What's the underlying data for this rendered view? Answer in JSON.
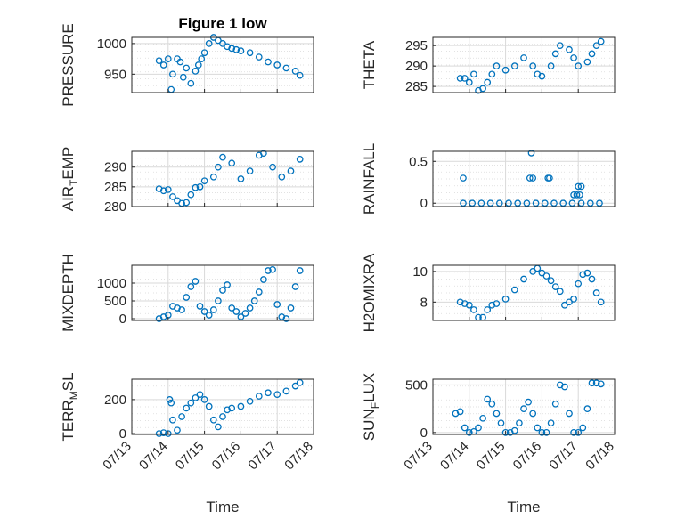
{
  "title": "Figure 1 low",
  "colors": {
    "marker": "#0072BD",
    "axis": "#262626",
    "grid": "#d9d9d9"
  },
  "xlabel": "Time",
  "chart_data": [
    {
      "type": "scatter",
      "ylabel": "PRESSURE",
      "ylabel_sub": "",
      "ylabel_tail": "",
      "xlim": [
        "07/13",
        "07/18"
      ],
      "ylim": [
        920,
        1010
      ],
      "yticks": [
        950,
        1000
      ],
      "grid": true,
      "x": [
        "07/13 18:00",
        "07/13 21:00",
        "07/14 00:00",
        "07/14 02:00",
        "07/14 03:00",
        "07/14 06:00",
        "07/14 08:00",
        "07/14 10:00",
        "07/14 12:00",
        "07/14 15:00",
        "07/14 18:00",
        "07/14 20:00",
        "07/14 22:00",
        "07/15 00:00",
        "07/15 03:00",
        "07/15 06:00",
        "07/15 09:00",
        "07/15 12:00",
        "07/15 15:00",
        "07/15 18:00",
        "07/15 21:00",
        "07/16 00:00",
        "07/16 06:00",
        "07/16 12:00",
        "07/16 18:00",
        "07/17 00:00",
        "07/17 06:00",
        "07/17 12:00",
        "07/17 15:00"
      ],
      "y": [
        972,
        965,
        975,
        925,
        950,
        975,
        970,
        945,
        960,
        935,
        955,
        965,
        975,
        985,
        1000,
        1010,
        1005,
        1000,
        995,
        992,
        990,
        988,
        985,
        978,
        970,
        965,
        960,
        955,
        948
      ]
    },
    {
      "type": "scatter",
      "ylabel": "THETA",
      "ylabel_sub": "",
      "ylabel_tail": "",
      "xlim": [
        "07/13",
        "07/18"
      ],
      "ylim": [
        283.5,
        297
      ],
      "yticks": [
        285,
        290,
        295
      ],
      "grid": true,
      "x": [
        "07/13 18:00",
        "07/13 21:00",
        "07/14 00:00",
        "07/14 03:00",
        "07/14 06:00",
        "07/14 09:00",
        "07/14 12:00",
        "07/14 15:00",
        "07/14 18:00",
        "07/15 00:00",
        "07/15 06:00",
        "07/15 12:00",
        "07/15 18:00",
        "07/15 21:00",
        "07/16 00:00",
        "07/16 06:00",
        "07/16 09:00",
        "07/16 12:00",
        "07/16 18:00",
        "07/16 21:00",
        "07/17 00:00",
        "07/17 06:00",
        "07/17 09:00",
        "07/17 12:00",
        "07/17 15:00"
      ],
      "y": [
        287,
        287,
        286,
        288,
        284,
        284.5,
        286,
        288,
        290,
        289,
        290,
        292,
        290,
        288,
        287.5,
        290,
        293,
        295,
        294,
        292,
        290,
        291,
        293,
        295,
        296
      ]
    },
    {
      "type": "scatter",
      "ylabel": "AIR",
      "ylabel_sub": "T",
      "ylabel_tail": "EMP",
      "xlim": [
        "07/13",
        "07/18"
      ],
      "ylim": [
        280,
        294
      ],
      "yticks": [
        280,
        285,
        290
      ],
      "grid": true,
      "x": [
        "07/13 18:00",
        "07/13 21:00",
        "07/14 00:00",
        "07/14 03:00",
        "07/14 06:00",
        "07/14 09:00",
        "07/14 12:00",
        "07/14 15:00",
        "07/14 18:00",
        "07/14 21:00",
        "07/15 00:00",
        "07/15 06:00",
        "07/15 09:00",
        "07/15 12:00",
        "07/15 18:00",
        "07/16 00:00",
        "07/16 06:00",
        "07/16 12:00",
        "07/16 15:00",
        "07/16 21:00",
        "07/17 03:00",
        "07/17 09:00",
        "07/17 15:00"
      ],
      "y": [
        284.5,
        284,
        284.3,
        282.5,
        281.5,
        280.8,
        281,
        283,
        284.8,
        285,
        286.5,
        287.5,
        290,
        292.5,
        291,
        287,
        289,
        293,
        293.5,
        290,
        287.5,
        289,
        292
      ]
    },
    {
      "type": "scatter",
      "ylabel": "RAINFALL",
      "ylabel_sub": "",
      "ylabel_tail": "",
      "xlim": [
        "07/13",
        "07/18"
      ],
      "ylim": [
        -0.04,
        0.62
      ],
      "yticks": [
        0,
        0.5
      ],
      "grid": true,
      "x": [
        "07/13 20:00",
        "07/14 02:00",
        "07/14 08:00",
        "07/14 14:00",
        "07/14 20:00",
        "07/15 02:00",
        "07/15 08:00",
        "07/15 14:00",
        "07/15 20:00",
        "07/16 02:00",
        "07/16 08:00",
        "07/16 14:00",
        "07/16 20:00",
        "07/17 02:00",
        "07/17 08:00",
        "07/17 14:00",
        "07/13 20:00",
        "07/15 16:00",
        "07/15 17:00",
        "07/15 18:00",
        "07/16 04:00",
        "07/16 05:00",
        "07/16 21:00",
        "07/17 00:00",
        "07/17 02:00",
        "07/16 23:00",
        "07/17 01:00"
      ],
      "y": [
        0,
        0,
        0,
        0,
        0,
        0,
        0,
        0,
        0,
        0,
        0,
        0,
        0,
        0,
        0,
        0,
        0.3,
        0.3,
        0.6,
        0.3,
        0.3,
        0.3,
        0.1,
        0.2,
        0.2,
        0.1,
        0.1
      ]
    },
    {
      "type": "scatter",
      "ylabel": "MIXDEPTH",
      "ylabel_sub": "",
      "ylabel_tail": "",
      "xlim": [
        "07/13",
        "07/18"
      ],
      "ylim": [
        -50,
        1500
      ],
      "yticks": [
        0,
        500,
        1000
      ],
      "grid": true,
      "x": [
        "07/13 18:00",
        "07/13 21:00",
        "07/14 00:00",
        "07/14 03:00",
        "07/14 06:00",
        "07/14 09:00",
        "07/14 12:00",
        "07/14 15:00",
        "07/14 18:00",
        "07/14 21:00",
        "07/15 00:00",
        "07/15 03:00",
        "07/15 06:00",
        "07/15 09:00",
        "07/15 12:00",
        "07/15 15:00",
        "07/15 18:00",
        "07/15 21:00",
        "07/16 00:00",
        "07/16 03:00",
        "07/16 06:00",
        "07/16 09:00",
        "07/16 12:00",
        "07/16 15:00",
        "07/16 18:00",
        "07/16 21:00",
        "07/17 00:00",
        "07/17 03:00",
        "07/17 06:00",
        "07/17 09:00",
        "07/17 12:00",
        "07/17 15:00"
      ],
      "y": [
        0,
        50,
        100,
        350,
        300,
        250,
        600,
        900,
        1050,
        350,
        200,
        100,
        250,
        500,
        800,
        950,
        300,
        200,
        50,
        150,
        300,
        500,
        750,
        1100,
        1350,
        1380,
        400,
        50,
        0,
        300,
        900,
        1350
      ]
    },
    {
      "type": "scatter",
      "ylabel": "H2OMIXRA",
      "ylabel_sub": "",
      "ylabel_tail": "",
      "xlim": [
        "07/13",
        "07/18"
      ],
      "ylim": [
        6.8,
        10.4
      ],
      "yticks": [
        8,
        10
      ],
      "grid": true,
      "x": [
        "07/13 18:00",
        "07/13 21:00",
        "07/14 00:00",
        "07/14 03:00",
        "07/14 06:00",
        "07/14 09:00",
        "07/14 12:00",
        "07/14 15:00",
        "07/14 18:00",
        "07/15 00:00",
        "07/15 06:00",
        "07/15 12:00",
        "07/15 18:00",
        "07/15 21:00",
        "07/16 00:00",
        "07/16 03:00",
        "07/16 06:00",
        "07/16 09:00",
        "07/16 12:00",
        "07/16 15:00",
        "07/16 18:00",
        "07/16 21:00",
        "07/17 00:00",
        "07/17 03:00",
        "07/17 06:00",
        "07/17 09:00",
        "07/17 12:00",
        "07/17 15:00"
      ],
      "y": [
        8,
        7.9,
        7.8,
        7.5,
        7.0,
        7.0,
        7.5,
        7.8,
        7.9,
        8.2,
        8.8,
        9.5,
        10.0,
        10.2,
        9.9,
        9.7,
        9.4,
        9.0,
        8.7,
        7.8,
        8.0,
        8.2,
        9.2,
        9.8,
        9.9,
        9.5,
        8.6,
        8.0
      ]
    },
    {
      "type": "scatter",
      "ylabel": "TERR",
      "ylabel_sub": "M",
      "ylabel_tail": "SL",
      "xlim": [
        "07/13",
        "07/18"
      ],
      "ylim": [
        -5,
        320
      ],
      "yticks": [
        0,
        200
      ],
      "grid": true,
      "x": [
        "07/13 18:00",
        "07/13 21:00",
        "07/14 00:00",
        "07/14 01:00",
        "07/14 02:00",
        "07/14 03:00",
        "07/14 06:00",
        "07/14 09:00",
        "07/14 12:00",
        "07/14 15:00",
        "07/14 18:00",
        "07/14 21:00",
        "07/15 00:00",
        "07/15 03:00",
        "07/15 06:00",
        "07/15 09:00",
        "07/15 12:00",
        "07/15 15:00",
        "07/15 18:00",
        "07/16 00:00",
        "07/16 06:00",
        "07/16 12:00",
        "07/16 18:00",
        "07/17 00:00",
        "07/17 06:00",
        "07/17 12:00",
        "07/17 15:00"
      ],
      "y": [
        0,
        5,
        0,
        200,
        180,
        80,
        20,
        100,
        150,
        180,
        210,
        230,
        200,
        160,
        80,
        40,
        100,
        140,
        150,
        160,
        190,
        220,
        240,
        230,
        250,
        280,
        300
      ]
    },
    {
      "type": "scatter",
      "ylabel": "SUN",
      "ylabel_sub": "F",
      "ylabel_tail": "LUX",
      "xlim": [
        "07/13",
        "07/18"
      ],
      "ylim": [
        -20,
        560
      ],
      "yticks": [
        0,
        500
      ],
      "grid": true,
      "x": [
        "07/13 15:00",
        "07/13 18:00",
        "07/13 21:00",
        "07/14 00:00",
        "07/14 03:00",
        "07/14 06:00",
        "07/14 09:00",
        "07/14 12:00",
        "07/14 15:00",
        "07/14 18:00",
        "07/14 21:00",
        "07/15 00:00",
        "07/15 03:00",
        "07/15 06:00",
        "07/15 09:00",
        "07/15 12:00",
        "07/15 15:00",
        "07/15 18:00",
        "07/15 21:00",
        "07/16 00:00",
        "07/16 03:00",
        "07/16 06:00",
        "07/16 09:00",
        "07/16 12:00",
        "07/16 15:00",
        "07/16 18:00",
        "07/16 21:00",
        "07/17 00:00",
        "07/17 03:00",
        "07/17 06:00",
        "07/17 09:00",
        "07/17 12:00",
        "07/17 15:00"
      ],
      "y": [
        200,
        220,
        50,
        0,
        10,
        50,
        150,
        350,
        300,
        200,
        100,
        0,
        0,
        20,
        100,
        250,
        320,
        200,
        50,
        0,
        0,
        100,
        300,
        500,
        480,
        200,
        0,
        0,
        50,
        250,
        520,
        520,
        510
      ]
    }
  ],
  "xtick_labels": [
    "07/13",
    "07/14",
    "07/15",
    "07/16",
    "07/17",
    "07/18"
  ]
}
